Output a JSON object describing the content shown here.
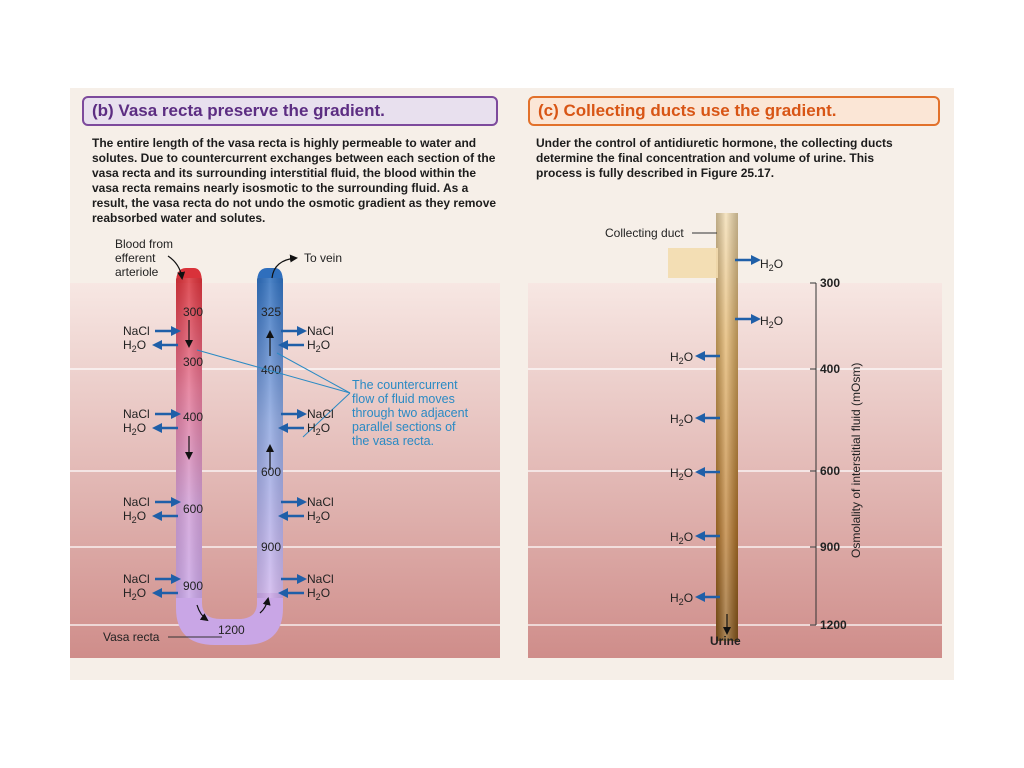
{
  "panel_b": {
    "title": "(b) Vasa recta preserve the gradient.",
    "description": "The entire length of the vasa recta is highly permeable to water and solutes. Due to countercurrent exchanges between each section of the vasa recta and its surrounding interstitial fluid, the blood within the vasa recta remains nearly isosmotic to the surrounding fluid. As a result, the vasa recta do not undo the osmotic gradient as they remove reabsorbed water and solutes.",
    "label_blood_from": [
      "Blood from",
      "efferent",
      "arteriole"
    ],
    "label_to_vein": "To vein",
    "label_vasa_recta": "Vasa recta",
    "descending_values": [
      "300",
      "300",
      "400",
      "600",
      "900"
    ],
    "bottom_value": "1200",
    "ascending_values": [
      "325",
      "400",
      "600",
      "900"
    ],
    "exchange_nacl": "NaCl",
    "exchange_h2o": "H",
    "exchange_h2o_sub": "2",
    "exchange_h2o_end": "O",
    "callout": [
      "The countercurrent",
      "flow of fluid moves",
      "through two adjacent",
      "parallel sections of",
      "the vasa recta."
    ]
  },
  "panel_c": {
    "title": "(c) Collecting ducts use the gradient.",
    "description": "Under the control of antidiuretic hormone, the collecting ducts determine the final concentration and volume of urine. This process is fully described in Figure 25.17.",
    "label_collecting_duct": "Collecting duct",
    "label_urine": "Urine",
    "axis_title": "Osmolality of interstitial fluid (mOsm)",
    "axis_values": [
      "300",
      "400",
      "600",
      "900",
      "1200"
    ]
  },
  "colors": {
    "arrow_blue": "#1f5fa8",
    "callout_blue": "#2a8ac4",
    "title_b": "#5c2d82",
    "title_c": "#d85515"
  }
}
